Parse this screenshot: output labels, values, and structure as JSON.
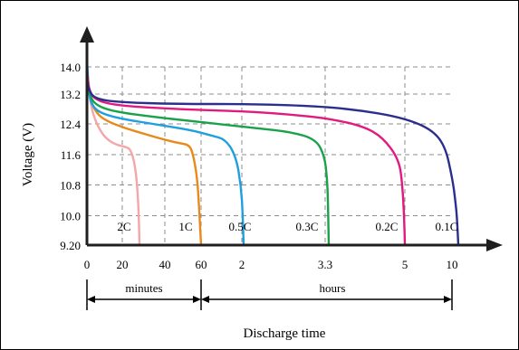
{
  "chart_data": {
    "type": "line",
    "title": "",
    "xlabel": "Discharge time",
    "ylabel": "Voltage (V)",
    "y_ticks": [
      "9.20",
      "10.0",
      "10.8",
      "11.6",
      "12.4",
      "13.2",
      "14.0"
    ],
    "ylim": [
      9.2,
      14.0
    ],
    "x_ticks": [
      "0",
      "20",
      "40",
      "60",
      "2",
      "3.3",
      "5",
      "10"
    ],
    "x_segments": [
      {
        "label": "minutes",
        "from": "0",
        "to": "60"
      },
      {
        "label": "hours",
        "from": "60",
        "to": "10"
      }
    ],
    "grid": true,
    "series": [
      {
        "name": "2C",
        "color": "#f4a6a8",
        "points": [
          [
            0,
            14.0
          ],
          [
            1.5,
            13.1
          ],
          [
            4,
            12.6
          ],
          [
            8,
            12.2
          ],
          [
            12,
            12.0
          ],
          [
            16,
            11.9
          ],
          [
            20,
            11.85
          ],
          [
            23,
            11.8
          ],
          [
            25,
            11.5
          ],
          [
            26.5,
            11.0
          ],
          [
            27.5,
            10.2
          ],
          [
            28,
            9.2
          ]
        ]
      },
      {
        "name": "1C",
        "color": "#e88a1a",
        "points": [
          [
            0,
            14.0
          ],
          [
            1.5,
            13.15
          ],
          [
            5,
            12.75
          ],
          [
            10,
            12.55
          ],
          [
            20,
            12.35
          ],
          [
            30,
            12.2
          ],
          [
            40,
            12.05
          ],
          [
            48,
            11.95
          ],
          [
            54,
            11.9
          ],
          [
            56,
            11.6
          ],
          [
            58,
            11.0
          ],
          [
            59,
            10.2
          ],
          [
            60,
            9.2
          ]
        ]
      },
      {
        "name": "0.5C",
        "color": "#1e9fe0",
        "points": [
          [
            0,
            14.2
          ],
          [
            1,
            13.3
          ],
          [
            3,
            12.95
          ],
          [
            8,
            12.75
          ],
          [
            20,
            12.6
          ],
          [
            40,
            12.45
          ],
          [
            60,
            12.3
          ],
          [
            72,
            12.15
          ],
          [
            80,
            12.05
          ],
          [
            86,
            11.6
          ],
          [
            89,
            10.8
          ],
          [
            90,
            10.0
          ],
          [
            90.5,
            9.2
          ]
        ]
      },
      {
        "name": "0.3C",
        "color": "#1aa24a",
        "points": [
          [
            0,
            13.9
          ],
          [
            1,
            13.35
          ],
          [
            4,
            13.0
          ],
          [
            15,
            12.8
          ],
          [
            40,
            12.65
          ],
          [
            60,
            12.55
          ],
          [
            80,
            12.45
          ],
          [
            100,
            12.35
          ],
          [
            120,
            12.25
          ],
          [
            135,
            12.05
          ],
          [
            140,
            11.6
          ],
          [
            141.5,
            11.0
          ],
          [
            142,
            10.4
          ],
          [
            142.5,
            9.2
          ]
        ]
      },
      {
        "name": "0.2C",
        "color": "#e2197f",
        "points": [
          [
            0,
            13.95
          ],
          [
            1,
            13.4
          ],
          [
            5,
            13.1
          ],
          [
            20,
            12.95
          ],
          [
            60,
            12.85
          ],
          [
            100,
            12.8
          ],
          [
            130,
            12.7
          ],
          [
            150,
            12.6
          ],
          [
            170,
            12.4
          ],
          [
            182,
            12.1
          ],
          [
            192,
            11.5
          ],
          [
            194,
            10.8
          ],
          [
            195,
            10.0
          ],
          [
            195.5,
            9.2
          ]
        ]
      },
      {
        "name": "0.1C",
        "color": "#2b2e8c",
        "points": [
          [
            0,
            13.7
          ],
          [
            1,
            13.4
          ],
          [
            5,
            13.15
          ],
          [
            20,
            13.05
          ],
          [
            60,
            13.0
          ],
          [
            110,
            13.0
          ],
          [
            150,
            12.95
          ],
          [
            180,
            12.85
          ],
          [
            210,
            12.65
          ],
          [
            230,
            12.35
          ],
          [
            240,
            11.9
          ],
          [
            245,
            11.0
          ],
          [
            247,
            10.4
          ],
          [
            248,
            10.0
          ],
          [
            249,
            9.2
          ]
        ]
      }
    ]
  }
}
